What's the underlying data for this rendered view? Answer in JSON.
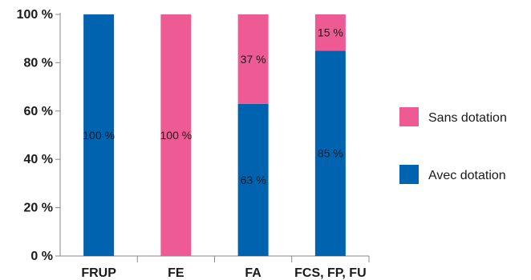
{
  "chart_data": {
    "type": "bar",
    "stacked": true,
    "categories": [
      "FRUP",
      "FE",
      "FA",
      "FCS, FP, FU"
    ],
    "series": [
      {
        "name": "Avec dotation",
        "color": "#0063b0",
        "values": [
          100,
          0,
          63,
          85
        ],
        "labels": [
          "100 %",
          "",
          "63 %",
          "85 %"
        ]
      },
      {
        "name": "Sans dotation",
        "color": "#ee5a93",
        "values": [
          0,
          100,
          37,
          15
        ],
        "labels": [
          "",
          "100 %",
          "37 %",
          "15 %"
        ]
      }
    ],
    "ylim": [
      0,
      100
    ],
    "yticks": [
      0,
      20,
      40,
      60,
      80,
      100
    ],
    "ytick_labels": [
      "0 %",
      "20 %",
      "40 %",
      "60 %",
      "80 %",
      "100 %"
    ],
    "legend": {
      "placement": "right",
      "order": [
        "Sans dotation",
        "Avec dotation"
      ]
    },
    "grid": false
  }
}
